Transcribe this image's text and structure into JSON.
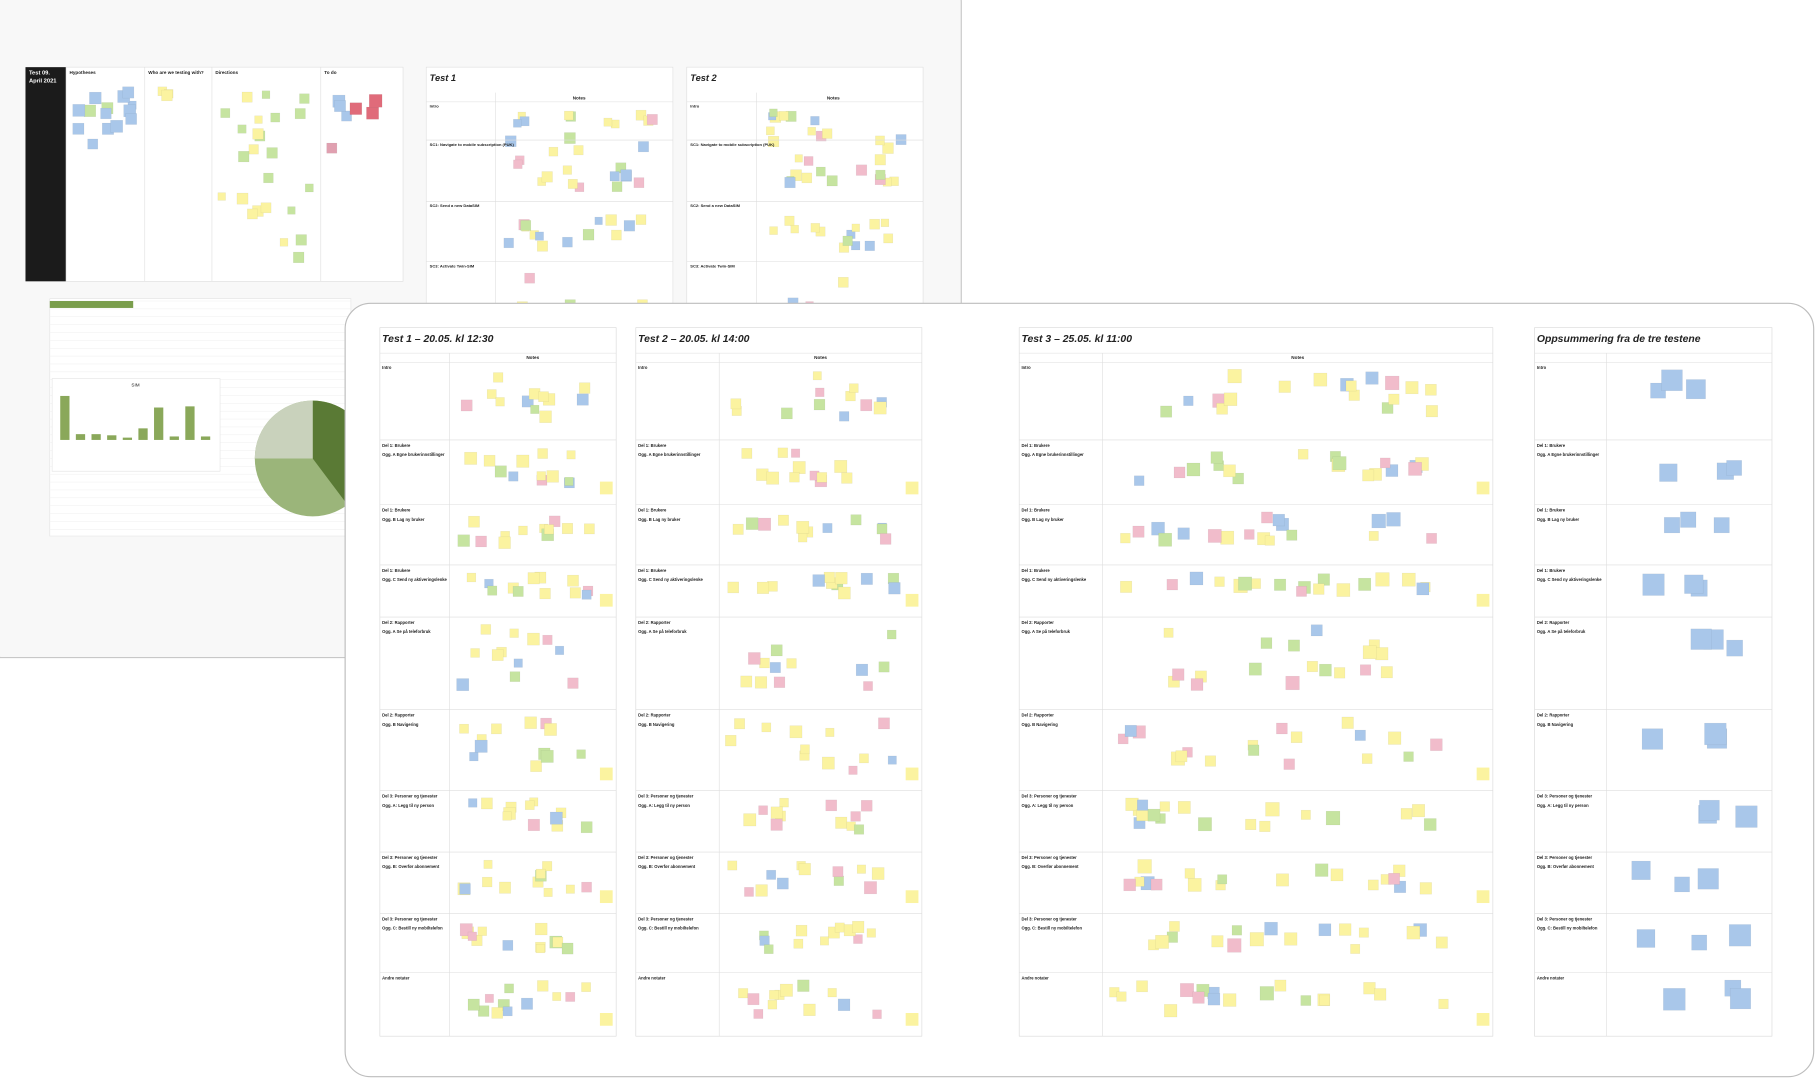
{
  "back_board": {
    "title_lines": [
      "Test 09.",
      "April 2021"
    ],
    "columns": [
      "Hypotheses",
      "Who are we testing with?",
      "Directions",
      "To do"
    ],
    "tests": [
      {
        "title": "Test 1",
        "notes_header": "Notes",
        "rows": [
          "Intro",
          "SC1: Navigate to mobile subscription (PUK)",
          "SC2: Send a new DataSIM",
          "SC3: Activate Twin-SIM"
        ]
      },
      {
        "title": "Test 2",
        "notes_header": "Notes",
        "rows": [
          "Intro",
          "SC1: Navigate to mobile subscription (PUK)",
          "SC2: Send a new DataSIM",
          "SC3: Activate Twin-SIM"
        ]
      }
    ],
    "sheet_title": "SIM"
  },
  "front_board": {
    "boards": [
      {
        "title": "Test 1 – 20.05. kl 12:30",
        "notes_header": "Notes"
      },
      {
        "title": "Test 2 – 20.05. kl 14:00",
        "notes_header": "Notes"
      },
      {
        "title": "Test 3 – 25.05. kl 11:00",
        "notes_header": "Notes"
      },
      {
        "title": "Oppsummering fra de tre testene"
      }
    ],
    "rows": [
      {
        "section": "Intro"
      },
      {
        "section": "Del 1: Brukere",
        "task": "Ogg. A Egne brukerinnstillinger"
      },
      {
        "section": "Del 1: Brukere",
        "task": "Ogg. B Lag ny bruker"
      },
      {
        "section": "Del 1: Brukere",
        "task": "Ogg. C Send ny aktiveringslenke"
      },
      {
        "section": "Del 2: Rapporter",
        "task": "Ogg. A Se på teleforbruk"
      },
      {
        "section": "Del 2: Rapporter",
        "task": "Ogg. B Navigering"
      },
      {
        "section": "Del 3: Personer og tjenester",
        "task": "Ogg. A: Legg til ny person"
      },
      {
        "section": "Del 3: Personer og tjenester",
        "task": "Ogg. B: Overfør abonnement"
      },
      {
        "section": "Del 3: Personer og tjenester",
        "task": "Ogg. C: Bestill ny mobiltelefon"
      },
      {
        "section": "Andre notater"
      }
    ]
  }
}
